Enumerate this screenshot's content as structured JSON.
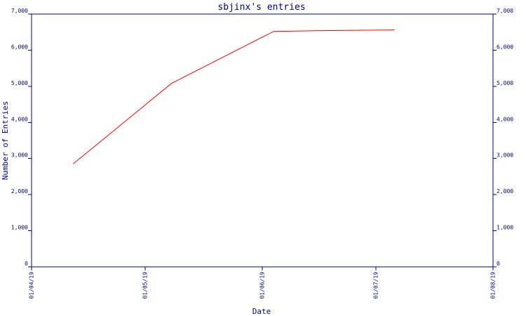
{
  "chart_data": {
    "type": "line",
    "title": "sbjinx's entries",
    "xlabel": "Date",
    "ylabel": "Number of Entries",
    "x_ticks": [
      "01/04/19",
      "01/05/19",
      "01/06/19",
      "01/07/19",
      "01/08/19"
    ],
    "y_ticks": [
      "0",
      "1,000",
      "2,000",
      "3,000",
      "4,000",
      "5,000",
      "6,000",
      "7,000"
    ],
    "ylim": [
      0,
      7000
    ],
    "xlim": [
      "2019-04-01",
      "2019-08-01"
    ],
    "y_axis_right": true,
    "grid": false,
    "colors": {
      "axis": "#000080",
      "text": "#000080",
      "series": "#ff0000"
    },
    "series": [
      {
        "x": [
          "2019-04-12",
          "2019-05-08",
          "2019-06-04",
          "2019-06-15",
          "2019-07-06"
        ],
        "y": [
          2850,
          5080,
          6520,
          6540,
          6560
        ]
      }
    ]
  }
}
